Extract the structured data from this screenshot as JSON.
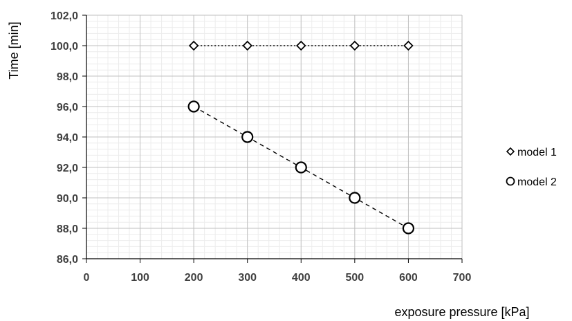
{
  "chart_data": {
    "type": "line",
    "xlabel": "exposure pressure [kPa]",
    "ylabel": "Time [min]",
    "xlim": [
      0,
      700
    ],
    "ylim": [
      86,
      102
    ],
    "x_ticks": [
      "0",
      "100",
      "200",
      "300",
      "400",
      "500",
      "600",
      "700"
    ],
    "y_ticks": [
      "86,0",
      "88,0",
      "90,0",
      "92,0",
      "94,0",
      "96,0",
      "98,0",
      "100,0",
      "102,0"
    ],
    "x_major_step": 100,
    "x_minor_step": 20,
    "y_major_step": 2,
    "y_minor_step": 0.4,
    "grid": true,
    "legend_position": "right",
    "series": [
      {
        "name": "model 1",
        "marker": "diamond",
        "line_style": "dotted",
        "color": "#000000",
        "x": [
          200,
          300,
          400,
          500,
          600
        ],
        "y": [
          100.0,
          100.0,
          100.0,
          100.0,
          100.0
        ]
      },
      {
        "name": "model 2",
        "marker": "circle",
        "line_style": "dashed",
        "color": "#000000",
        "x": [
          200,
          300,
          400,
          500,
          600
        ],
        "y": [
          96.0,
          94.0,
          92.0,
          90.0,
          88.0
        ]
      }
    ]
  }
}
